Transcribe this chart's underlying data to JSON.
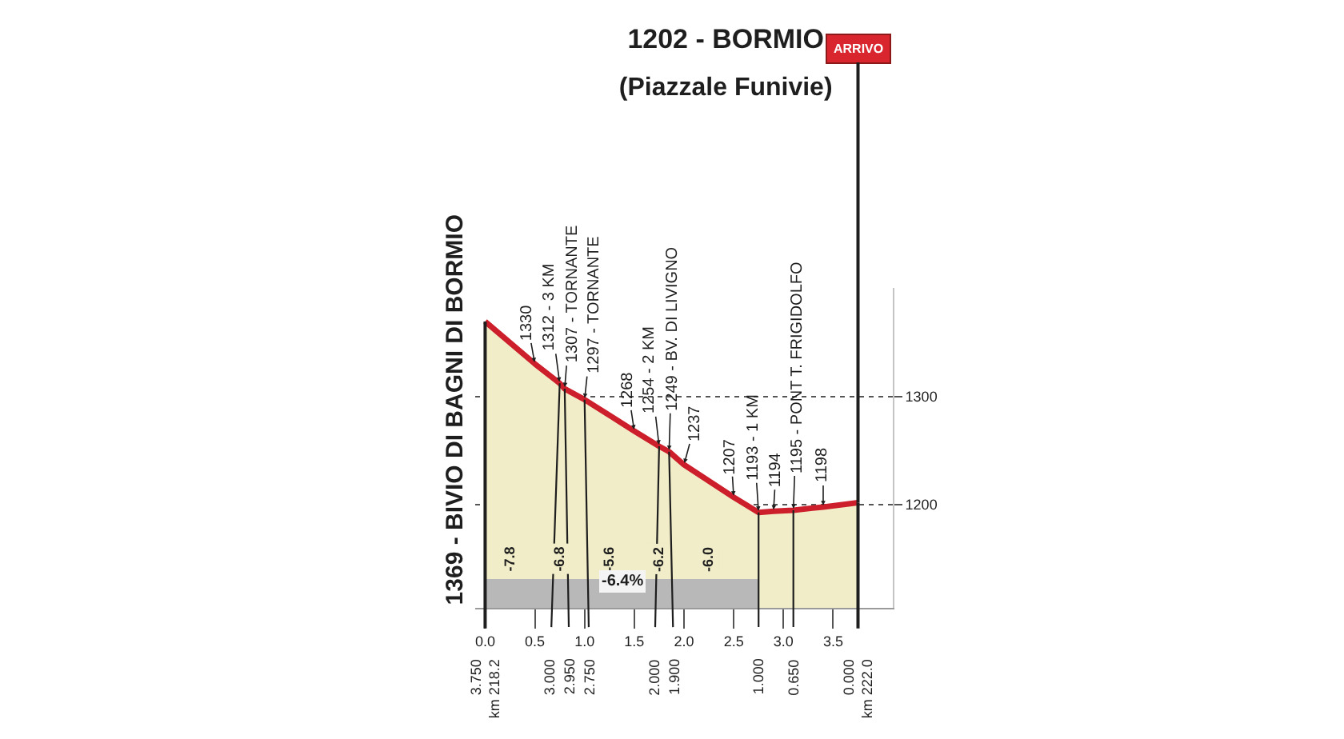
{
  "chart_data": {
    "type": "area",
    "title": "1202 - BORMIO",
    "subtitle": "(Piazzale Funivie)",
    "x": [
      0,
      0.5,
      0.75,
      0.8,
      1.0,
      1.5,
      1.75,
      1.85,
      2.0,
      2.5,
      2.75,
      2.9,
      3.1,
      3.4,
      3.75
    ],
    "values": [
      1369,
      1330,
      1312,
      1307,
      1297,
      1268,
      1254,
      1249,
      1237,
      1207,
      1193,
      1194,
      1195,
      1198,
      1202
    ],
    "color": "#cc1f2b",
    "xlim": [
      -0.1,
      4.1
    ],
    "xticks": [
      {
        "value": 0,
        "label": "0.0"
      },
      {
        "value": 0.5,
        "label": "0.5"
      },
      {
        "value": 1,
        "label": "1.0"
      },
      {
        "value": 1.5,
        "label": "1.5"
      },
      {
        "value": 2,
        "label": "2.0"
      },
      {
        "value": 2.5,
        "label": "2.5"
      },
      {
        "value": 3,
        "label": "3.0"
      },
      {
        "value": 3.5,
        "label": "3.5"
      }
    ],
    "ylim": [
      1105,
      1400
    ],
    "yticks": [
      1200,
      1300
    ],
    "grid": "y",
    "bands": [
      {
        "axis": "x",
        "from": 0,
        "to": 2.75,
        "label": "-6.4%",
        "color": "#b8b8b8"
      }
    ],
    "annotations": [
      {
        "text": "1369 - BIVIO DI BAGNI DI BORMIO",
        "x": 0,
        "y": 1369
      },
      {
        "text": "1330",
        "x": 0.5,
        "y": 1330
      },
      {
        "text": "1312 - 3 KM",
        "x": 0.75,
        "y": 1312
      },
      {
        "text": "1307 - TORNANTE",
        "x": 0.8,
        "y": 1307
      },
      {
        "text": "1297 - TORNANTE",
        "x": 1.0,
        "y": 1297
      },
      {
        "text": "1268",
        "x": 1.5,
        "y": 1268
      },
      {
        "text": "1254 - 2 KM",
        "x": 1.75,
        "y": 1254
      },
      {
        "text": "1249 - BV. DI LIVIGNO",
        "x": 1.85,
        "y": 1249
      },
      {
        "text": "1237",
        "x": 2.0,
        "y": 1237
      },
      {
        "text": "1207",
        "x": 2.5,
        "y": 1207
      },
      {
        "text": "1193 - 1 KM",
        "x": 2.75,
        "y": 1193
      },
      {
        "text": "1194",
        "x": 2.9,
        "y": 1194
      },
      {
        "text": "1195 - PONT T. FRIGIDOLFO",
        "x": 3.1,
        "y": 1195
      },
      {
        "text": "1198",
        "x": 3.4,
        "y": 1198
      },
      {
        "text": "ARRIVO",
        "x": 3.75,
        "y": 1202
      },
      {
        "text": "-7.8",
        "x": 0.25,
        "y": 1150
      },
      {
        "text": "-6.8",
        "x": 0.75,
        "y": 1150
      },
      {
        "text": "-5.6",
        "x": 1.25,
        "y": 1150
      },
      {
        "text": "-6.2",
        "x": 1.75,
        "y": 1150
      },
      {
        "text": "-6.0",
        "x": 2.25,
        "y": 1150
      },
      {
        "text": "3.750\nkm 218.2",
        "x": 0,
        "y": 1369
      },
      {
        "text": "3.000",
        "x": 0.75,
        "y": 1312
      },
      {
        "text": "2.950",
        "x": 0.8,
        "y": 1307
      },
      {
        "text": "2.750",
        "x": 1.0,
        "y": 1297
      },
      {
        "text": "2.000",
        "x": 1.75,
        "y": 1254
      },
      {
        "text": "1.900",
        "x": 1.85,
        "y": 1249
      },
      {
        "text": "1.000",
        "x": 2.75,
        "y": 1193
      },
      {
        "text": "0.650",
        "x": 3.1,
        "y": 1195
      },
      {
        "text": "0.000\nkm 222.0",
        "x": 3.75,
        "y": 1202
      }
    ]
  }
}
